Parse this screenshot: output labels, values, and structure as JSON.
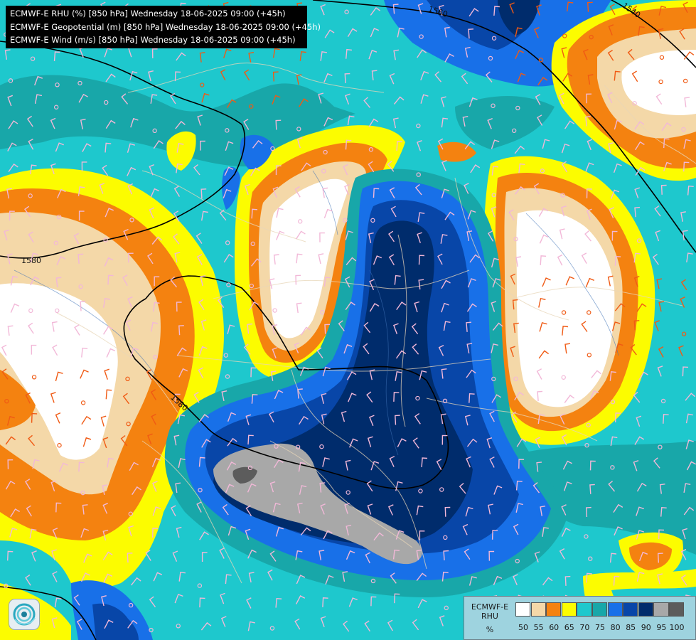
{
  "header": {
    "line1": "ECMWF-E RHU (%) [850 hPa] Wednesday 18-06-2025 09:00 (+45h)",
    "line2": "ECMWF-E Geopotential (m) [850 hPa] Wednesday 18-06-2025 09:00 (+45h)",
    "line3": "ECMWF-E Wind (m/s) [850 hPa] Wednesday 18-06-2025 09:00 (+45h)"
  },
  "contour_labels": [
    "1560",
    "1540",
    "1580",
    "1580"
  ],
  "legend": {
    "name_line1": "ECMWF-E",
    "name_line2": "RHU",
    "unit": "%",
    "ticks": [
      "50",
      "55",
      "60",
      "65",
      "70",
      "75",
      "80",
      "85",
      "90",
      "95",
      "100"
    ],
    "colors": [
      "#ffffff",
      "#f4d8a8",
      "#f48210",
      "#fcfc00",
      "#1ec8cd",
      "#18a7a9",
      "#1870e8",
      "#0846a8",
      "#002c6c",
      "#a8a8a8",
      "#5c5c5c"
    ]
  },
  "logo": "ecmwf-swirl-icon"
}
